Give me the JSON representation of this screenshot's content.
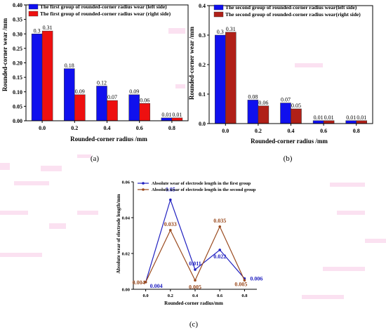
{
  "chart_data": [
    {
      "id": "a",
      "type": "bar",
      "panel_label": "(a)",
      "categories": [
        "0.0",
        "0.2",
        "0.4",
        "0.6",
        "0.8"
      ],
      "xlabel": "Rounded-corner radius /mm",
      "ylabel": "Rounded-corner wear /mm",
      "ylim": [
        0,
        0.4
      ],
      "yticks": [
        "0.00",
        "0.05",
        "0.10",
        "0.15",
        "0.20",
        "0.25",
        "0.30",
        "0.35",
        "0.40"
      ],
      "legend_position": "top-left",
      "series": [
        {
          "name": "The first group of rounded-corner radius wear (left side)",
          "color": "#1010ee",
          "values": [
            0.3,
            0.18,
            0.12,
            0.09,
            0.01
          ],
          "labels": [
            "0.3",
            "0.18",
            "0.12",
            "0.09",
            "0.01"
          ]
        },
        {
          "name": "The first group of rounded-corner radius wear (right side)",
          "color": "#ee1010",
          "values": [
            0.31,
            0.09,
            0.07,
            0.06,
            0.01
          ],
          "labels": [
            "0.31",
            "0.09",
            "0.07",
            "0.06",
            "0.01"
          ]
        }
      ]
    },
    {
      "id": "b",
      "type": "bar",
      "panel_label": "(b)",
      "categories": [
        "0.0",
        "0.2",
        "0.4",
        "0.6",
        "0.8"
      ],
      "xlabel": "Rounded-corner radius /mm",
      "ylabel": "Rounded-corner wear /mm",
      "ylim": [
        0,
        0.4
      ],
      "yticks": [
        "0.0",
        "0.1",
        "0.2",
        "0.3",
        "0.4"
      ],
      "legend_position": "top",
      "series": [
        {
          "name": "The second group of rounded-corner radius wear(left side)",
          "color": "#1010ee",
          "values": [
            0.3,
            0.08,
            0.07,
            0.01,
            0.01
          ],
          "labels": [
            "0.3",
            "0.08",
            "0.07",
            "0.01",
            "0.01"
          ]
        },
        {
          "name": "The second group of rounded-corner radius wear(right side)",
          "color": "#b02018",
          "values": [
            0.31,
            0.06,
            0.05,
            0.01,
            0.01
          ],
          "labels": [
            "0.31",
            "0.06",
            "0.05",
            "0.01",
            "0.01"
          ]
        }
      ]
    },
    {
      "id": "c",
      "type": "line",
      "panel_label": "(c)",
      "x": [
        0.0,
        0.2,
        0.4,
        0.6,
        0.8
      ],
      "xticks": [
        "0.0",
        "0.2",
        "0.4",
        "0.6",
        "0.8"
      ],
      "xlabel": "Rounded-corner radius/mm",
      "ylabel": "Absolute wear of electrode length/mm",
      "ylim": [
        0,
        0.06
      ],
      "yticks": [
        "0.00",
        "0.02",
        "0.04",
        "0.06"
      ],
      "legend_position": "top",
      "series": [
        {
          "name": "Absolute wear of electrode length in the first group",
          "color": "#2020c0",
          "values": [
            0.004,
            0.05,
            0.011,
            0.022,
            0.006
          ],
          "labels": [
            "0.004",
            "0.05",
            "0.011",
            "0.022",
            "0.006"
          ]
        },
        {
          "name": "Absolute wear of electrode length in the second group",
          "color": "#9a4a1e",
          "values": [
            0.004,
            0.033,
            0.005,
            0.035,
            0.005
          ],
          "labels": [
            "0.004",
            "0.033",
            "0.005",
            "0.035",
            "0.005"
          ]
        }
      ]
    }
  ]
}
